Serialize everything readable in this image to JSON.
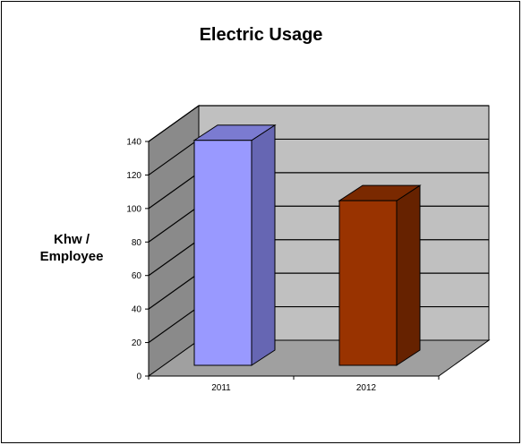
{
  "chart_data": {
    "type": "bar",
    "title": "Electric Usage",
    "ylabel": "Khw /\nEmployee",
    "xlabel": "",
    "categories": [
      "2011",
      "2012"
    ],
    "values": [
      138,
      102
    ],
    "ylim": [
      0,
      140
    ],
    "yticks": [
      "0",
      "20",
      "40",
      "60",
      "80",
      "100",
      "120",
      "140"
    ],
    "grid": true,
    "three_d": true,
    "bar_colors": [
      {
        "front": "#9999ff",
        "side": "#6666b3",
        "top": "#7b7bd1"
      },
      {
        "front": "#993300",
        "side": "#662200",
        "top": "#7a2900"
      }
    ],
    "wall_color": "#c0c0c0",
    "side_wall_color": "#8a8a8a",
    "floor_color": "#a0a0a0"
  }
}
